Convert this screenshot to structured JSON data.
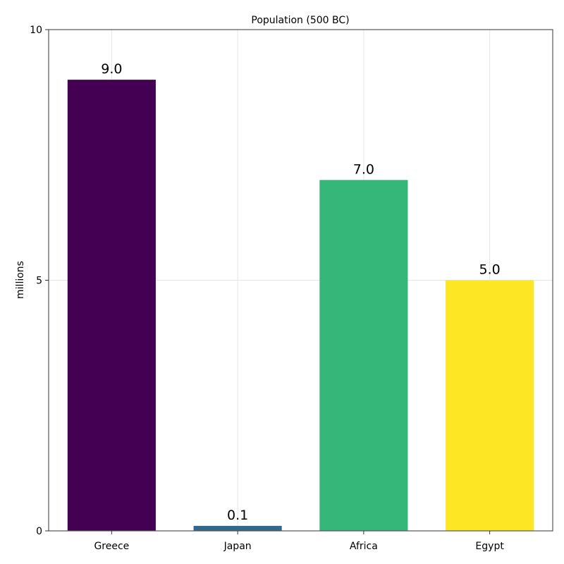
{
  "chart_data": {
    "type": "bar",
    "title": "Population (500 BC)",
    "xlabel": "",
    "ylabel": "millions",
    "categories": [
      "Greece",
      "Japan",
      "Africa",
      "Egypt"
    ],
    "values": [
      9.0,
      0.1,
      7.0,
      5.0
    ],
    "data_labels": [
      "9.0",
      "0.1",
      "7.0",
      "5.0"
    ],
    "colors": [
      "#440154",
      "#31688e",
      "#35b779",
      "#fde725"
    ],
    "ylim": [
      0,
      10
    ],
    "yticks": [
      0,
      5,
      10
    ],
    "ytick_labels": [
      "0",
      "5",
      "10"
    ],
    "grid": true,
    "legend": "none"
  }
}
